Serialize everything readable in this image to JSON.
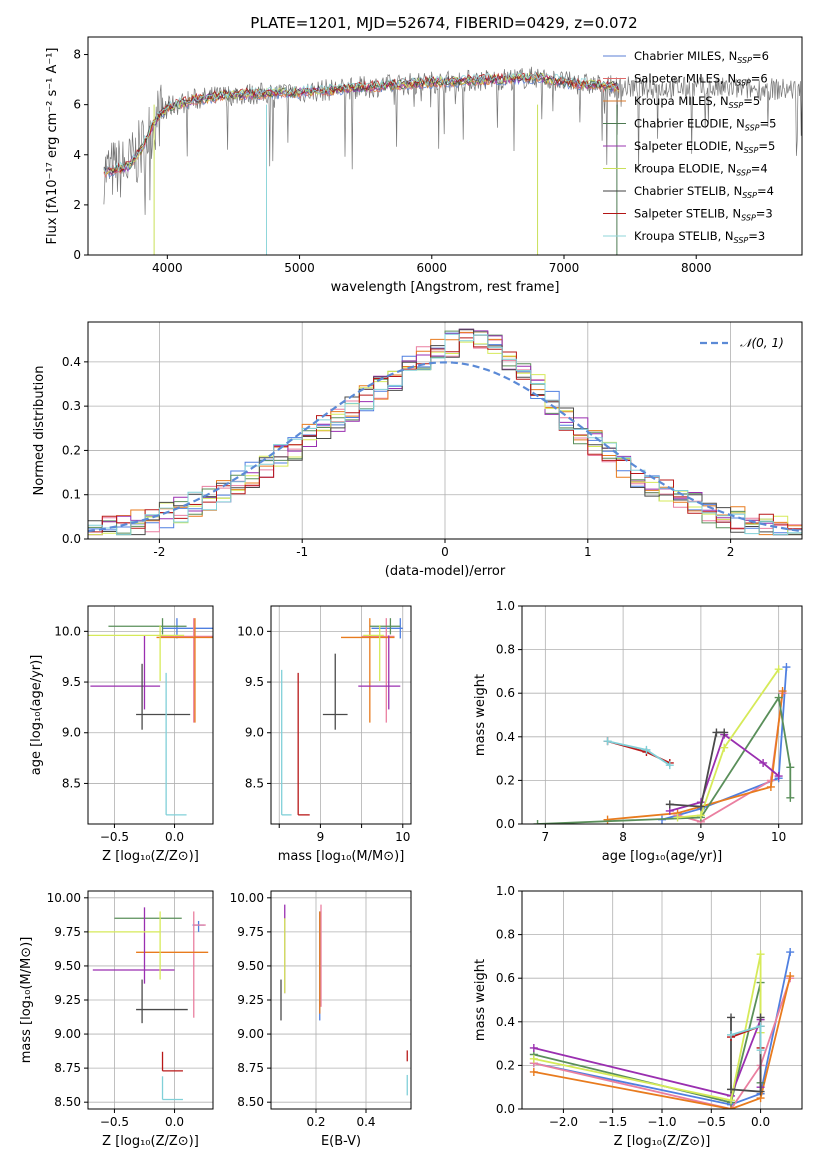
{
  "figure_title": "PLATE=1201, MJD=52674, FIBERID=0429, z=0.072",
  "colors": {
    "models": [
      "#5b7fd6",
      "#e06a6a",
      "#d97a2b",
      "#4d7a52",
      "#9b37b0",
      "#c9e05a",
      "#404040",
      "#b31515",
      "#8fd6da"
    ],
    "light": [
      "#4f7fe0",
      "#ea7fa0",
      "#e87b1e",
      "#5a8f5a",
      "#9a2fb0",
      "#d6ea59",
      "#4a4a4a",
      "#b81818",
      "#80d0d8"
    ],
    "data": "#777777",
    "normal": "#5b8ad6",
    "grid": "#b0b0b0"
  },
  "chart_data": [
    {
      "type": "line",
      "id": "spectrum",
      "title": "PLATE=1201, MJD=52674, FIBERID=0429, z=0.072",
      "xlabel": "wavelength [Angstrom, rest frame]",
      "ylabel": "Flux [fλ10⁻¹⁷ erg cm⁻² s⁻¹ A⁻¹]",
      "xlim": [
        3400,
        8800
      ],
      "ylim": [
        0,
        8.7
      ],
      "xticks": [
        4000,
        5000,
        6000,
        7000,
        8000
      ],
      "yticks": [
        0,
        2,
        4,
        6,
        8
      ],
      "grid": false,
      "legend_position": "right",
      "series": [
        {
          "name": "Chabrier MILES, N_SSP=6"
        },
        {
          "name": "Salpeter MILES, N_SSP=6"
        },
        {
          "name": "Kroupa MILES, N_SSP=5"
        },
        {
          "name": "Chabrier ELODIE, N_SSP=5"
        },
        {
          "name": "Salpeter ELODIE, N_SSP=5"
        },
        {
          "name": "Kroupa ELODIE, N_SSP=4"
        },
        {
          "name": "Chabrier STELIB, N_SSP=4"
        },
        {
          "name": "Salpeter STELIB, N_SSP=3"
        },
        {
          "name": "Kroupa STELIB, N_SSP=3"
        }
      ],
      "continuum": {
        "x": [
          3500,
          3700,
          3800,
          3900,
          4000,
          4200,
          4500,
          5000,
          5500,
          6000,
          6500,
          6800,
          7000,
          7400
        ],
        "y": [
          3.3,
          3.5,
          4.2,
          5.3,
          5.9,
          6.2,
          6.4,
          6.5,
          6.7,
          6.9,
          7.0,
          7.1,
          6.9,
          6.7
        ]
      }
    },
    {
      "type": "histogram",
      "id": "residuals",
      "xlabel": "(data-model)/error",
      "ylabel": "Normed distribution",
      "xlim": [
        -2.5,
        2.5
      ],
      "ylim": [
        0,
        0.49
      ],
      "xticks": [
        -2,
        -1,
        0,
        1,
        2
      ],
      "yticks": [
        0.0,
        0.1,
        0.2,
        0.3,
        0.4
      ],
      "grid": true,
      "legend_position": "top-right",
      "legend": "𝒩(0, 1)",
      "normal_curve": {
        "mean": 0,
        "sigma": 1
      }
    },
    {
      "type": "errorbar",
      "id": "age-vs-Z",
      "xlabel": "Z [log₁₀(Z/Z⊙)]",
      "ylabel": "age  [log₁₀(age/yr)]",
      "xlim": [
        -0.72,
        0.32
      ],
      "ylim": [
        8.1,
        10.25
      ],
      "xticks": [
        -0.5,
        0.0
      ],
      "yticks": [
        8.5,
        9.0,
        9.5,
        10.0
      ],
      "xticklabels": [
        "−0.5",
        "0.0"
      ],
      "yticklabels": [
        "8.5",
        "9.0",
        "9.5",
        "10.0"
      ],
      "grid": true,
      "points": [
        {
          "x": 0.02,
          "y": 10.03,
          "xerr": [
            0.12,
            0.32
          ],
          "yerr": [
            0.1,
            0.1
          ],
          "color": 0
        },
        {
          "x": 0.16,
          "y": 9.95,
          "xerr": [
            0.28,
            0.32
          ],
          "yerr": [
            0.85,
            0.18
          ],
          "color": 1
        },
        {
          "x": 0.17,
          "y": 9.94,
          "xerr": [
            0.32,
            0.3
          ],
          "yerr": [
            0.84,
            0.19
          ],
          "color": 2
        },
        {
          "x": -0.1,
          "y": 10.05,
          "xerr": [
            0.45,
            0.2
          ],
          "yerr": [
            0.08,
            0.08
          ],
          "color": 3
        },
        {
          "x": -0.25,
          "y": 9.46,
          "xerr": [
            0.45,
            0.13
          ],
          "yerr": [
            0.23,
            0.5
          ],
          "color": 4
        },
        {
          "x": -0.12,
          "y": 9.96,
          "xerr": [
            0.65,
            0.2
          ],
          "yerr": [
            0.45,
            0.1
          ],
          "color": 5
        },
        {
          "x": -0.27,
          "y": 9.18,
          "xerr": [
            0.05,
            0.4
          ],
          "yerr": [
            0.15,
            0.5
          ],
          "color": 6
        },
        {
          "x": -0.1,
          "y": 9.58,
          "xerr": [
            0.0,
            0.0
          ],
          "yerr": [
            0.0,
            0.0
          ],
          "color": 7
        },
        {
          "x": -0.07,
          "y": 8.19,
          "xerr": [
            0.0,
            0.17
          ],
          "yerr": [
            0.0,
            1.4
          ],
          "color": 8
        }
      ]
    },
    {
      "type": "errorbar",
      "id": "age-vs-mass",
      "xlabel": "mass [log₁₀(M/M⊙)]",
      "xlim": [
        8.4,
        10.1
      ],
      "ylim": [
        8.1,
        10.25
      ],
      "xticks": [
        8.5,
        9.0,
        9.5,
        10.0
      ],
      "yticks": [
        8.5,
        9.0,
        9.5,
        10.0
      ],
      "xticklabels": [
        "",
        "9",
        "",
        "10"
      ],
      "yticklabels": [
        "8.5",
        "9.0",
        "9.5",
        "10.0"
      ],
      "grid": true,
      "points": [
        {
          "x": 9.97,
          "y": 10.03,
          "xerr": [
            0.35,
            0.03
          ],
          "yerr": [
            0.1,
            0.1
          ],
          "color": 0
        },
        {
          "x": 9.8,
          "y": 9.95,
          "xerr": [
            0.3,
            0.1
          ],
          "yerr": [
            0.85,
            0.18
          ],
          "color": 1
        },
        {
          "x": 9.6,
          "y": 9.94,
          "xerr": [
            0.35,
            0.3
          ],
          "yerr": [
            0.84,
            0.19
          ],
          "color": 2
        },
        {
          "x": 9.85,
          "y": 10.05,
          "xerr": [
            0.25,
            0.12
          ],
          "yerr": [
            0.08,
            0.08
          ],
          "color": 3
        },
        {
          "x": 9.83,
          "y": 9.46,
          "xerr": [
            0.37,
            0.14
          ],
          "yerr": [
            0.23,
            0.5
          ],
          "color": 4
        },
        {
          "x": 9.72,
          "y": 9.96,
          "xerr": [
            0.2,
            0.05
          ],
          "yerr": [
            0.45,
            0.1
          ],
          "color": 5
        },
        {
          "x": 9.18,
          "y": 9.18,
          "xerr": [
            0.15,
            0.15
          ],
          "yerr": [
            0.15,
            0.6
          ],
          "color": 6
        },
        {
          "x": 8.73,
          "y": 8.19,
          "xerr": [
            0.0,
            0.14
          ],
          "yerr": [
            0.0,
            1.4
          ],
          "color": 7
        },
        {
          "x": 8.53,
          "y": 8.19,
          "xerr": [
            0.0,
            0.12
          ],
          "yerr": [
            0.0,
            1.43
          ],
          "color": 8
        }
      ]
    },
    {
      "type": "line",
      "id": "mass-weight-vs-age",
      "xlabel": "age  [log₁₀(age/yr)]",
      "ylabel": "mass weight",
      "xlim": [
        6.7,
        10.3
      ],
      "ylim": [
        0,
        1.0
      ],
      "xticks": [
        7,
        8,
        9,
        10
      ],
      "yticks": [
        0.0,
        0.2,
        0.4,
        0.6,
        0.8,
        1.0
      ],
      "grid": true,
      "series": [
        {
          "color": 0,
          "x": [
            8.5,
            9.0,
            10.0,
            10.1
          ],
          "y": [
            0.02,
            0.07,
            0.21,
            0.72
          ]
        },
        {
          "color": 1,
          "x": [
            8.7,
            9.0,
            9.9,
            10.05
          ],
          "y": [
            0.04,
            0.01,
            0.2,
            0.6
          ]
        },
        {
          "color": 2,
          "x": [
            7.8,
            8.7,
            9.9,
            10.05
          ],
          "y": [
            0.02,
            0.05,
            0.17,
            0.61
          ]
        },
        {
          "color": 3,
          "x": [
            6.9,
            9.0,
            10.0,
            10.15,
            10.15
          ],
          "y": [
            0.0,
            0.03,
            0.58,
            0.26,
            0.12
          ]
        },
        {
          "color": 4,
          "x": [
            8.6,
            9.0,
            9.3,
            9.8,
            10.0
          ],
          "y": [
            0.06,
            0.1,
            0.41,
            0.28,
            0.22
          ]
        },
        {
          "color": 5,
          "x": [
            8.7,
            9.0,
            9.3,
            10.0
          ],
          "y": [
            0.03,
            0.04,
            0.35,
            0.71
          ]
        },
        {
          "color": 6,
          "x": [
            8.6,
            9.0,
            9.2,
            9.3
          ],
          "y": [
            0.09,
            0.08,
            0.42,
            0.42
          ]
        },
        {
          "color": 7,
          "x": [
            7.8,
            8.3,
            8.6
          ],
          "y": [
            0.38,
            0.33,
            0.28
          ]
        },
        {
          "color": 8,
          "x": [
            7.8,
            8.3,
            8.6
          ],
          "y": [
            0.38,
            0.34,
            0.27
          ]
        }
      ]
    },
    {
      "type": "errorbar",
      "id": "mass-vs-Z",
      "xlabel": "Z [log₁₀(Z/Z⊙)]",
      "ylabel": "mass [log₁₀(M/M⊙)]",
      "xlim": [
        -0.72,
        0.32
      ],
      "ylim": [
        8.45,
        10.05
      ],
      "xticks": [
        -0.5,
        0.0
      ],
      "yticks": [
        8.5,
        8.75,
        9.0,
        9.25,
        9.5,
        9.75,
        10.0
      ],
      "xticklabels": [
        "−0.5",
        "0.0"
      ],
      "yticklabels": [
        "8.50",
        "8.75",
        "9.00",
        "9.25",
        "9.50",
        "9.75",
        "10.00"
      ],
      "grid": true,
      "points": [
        {
          "x": 0.2,
          "y": 9.8,
          "xerr": [
            0.05,
            0.05
          ],
          "yerr": [
            0.05,
            0.03
          ],
          "color": 0
        },
        {
          "x": 0.16,
          "y": 9.8,
          "xerr": [
            0.0,
            0.1
          ],
          "yerr": [
            0.68,
            0.1
          ],
          "color": 1
        },
        {
          "x": -0.1,
          "y": 9.6,
          "xerr": [
            0.22,
            0.38
          ],
          "yerr": [
            0.0,
            0.0
          ],
          "color": 2
        },
        {
          "x": -0.22,
          "y": 9.85,
          "xerr": [
            0.28,
            0.28
          ],
          "yerr": [
            0.0,
            0.0
          ],
          "color": 3
        },
        {
          "x": -0.25,
          "y": 9.47,
          "xerr": [
            0.43,
            0.25
          ],
          "yerr": [
            0.1,
            0.46
          ],
          "color": 4
        },
        {
          "x": -0.12,
          "y": 9.75,
          "xerr": [
            0.6,
            0.0
          ],
          "yerr": [
            0.35,
            0.15
          ],
          "color": 5
        },
        {
          "x": -0.27,
          "y": 9.18,
          "xerr": [
            0.05,
            0.38
          ],
          "yerr": [
            0.1,
            0.22
          ],
          "color": 6
        },
        {
          "x": -0.1,
          "y": 8.73,
          "xerr": [
            0.0,
            0.17
          ],
          "yerr": [
            0.0,
            0.14
          ],
          "color": 7
        },
        {
          "x": -0.1,
          "y": 8.52,
          "xerr": [
            0.0,
            0.17
          ],
          "yerr": [
            0.0,
            0.17
          ],
          "color": 8
        }
      ]
    },
    {
      "type": "errorbar",
      "id": "mass-vs-ebv",
      "xlabel": "E(B-V)",
      "xlim": [
        0.02,
        0.58
      ],
      "ylim": [
        8.45,
        10.05
      ],
      "xticks": [
        0.2,
        0.4
      ],
      "yticks": [
        8.5,
        8.75,
        9.0,
        9.25,
        9.5,
        9.75,
        10.0
      ],
      "xticklabels": [
        "0.2",
        "0.4"
      ],
      "yticklabels": [
        "8.50",
        "8.75",
        "9.00",
        "9.25",
        "9.50",
        "9.75",
        "10.00"
      ],
      "grid": true,
      "points": [
        {
          "x": 0.215,
          "y": 9.5,
          "xerr": [
            0.0,
            0.0
          ],
          "yerr": [
            0.4,
            0.4
          ],
          "color": 0
        },
        {
          "x": 0.22,
          "y": 9.55,
          "xerr": [
            0.0,
            0.0
          ],
          "yerr": [
            0.35,
            0.4
          ],
          "color": 1
        },
        {
          "x": 0.215,
          "y": 9.45,
          "xerr": [
            0.0,
            0.0
          ],
          "yerr": [
            0.3,
            0.45
          ],
          "color": 2
        },
        {
          "x": 0.075,
          "y": 9.6,
          "xerr": [
            0.0,
            0.0
          ],
          "yerr": [
            0.3,
            0.35
          ],
          "color": 4
        },
        {
          "x": 0.075,
          "y": 9.6,
          "xerr": [
            0.0,
            0.0
          ],
          "yerr": [
            0.3,
            0.25
          ],
          "color": 5
        },
        {
          "x": 0.06,
          "y": 9.2,
          "xerr": [
            0.0,
            0.0
          ],
          "yerr": [
            0.1,
            0.2
          ],
          "color": 6
        },
        {
          "x": 0.565,
          "y": 8.8,
          "xerr": [
            0.0,
            0.0
          ],
          "yerr": [
            0.0,
            0.08
          ],
          "color": 7
        },
        {
          "x": 0.565,
          "y": 8.55,
          "xerr": [
            0.0,
            0.0
          ],
          "yerr": [
            0.0,
            0.15
          ],
          "color": 8
        }
      ]
    },
    {
      "type": "line",
      "id": "mass-weight-vs-Z",
      "xlabel": "Z [log₁₀(Z/Z⊙)]",
      "ylabel": "mass weight",
      "xlim": [
        -2.42,
        0.42
      ],
      "ylim": [
        0,
        1.0
      ],
      "xticks": [
        -2.0,
        -1.5,
        -1.0,
        -0.5,
        0.0
      ],
      "xticklabels": [
        "−2.0",
        "−1.5",
        "−1.0",
        "−0.5",
        "0.0"
      ],
      "yticks": [
        0.0,
        0.2,
        0.4,
        0.6,
        0.8,
        1.0
      ],
      "grid": true,
      "series": [
        {
          "color": 0,
          "x": [
            -2.3,
            -0.3,
            0.0,
            0.3
          ],
          "y": [
            0.21,
            0.02,
            0.07,
            0.72
          ]
        },
        {
          "color": 1,
          "x": [
            -2.3,
            -0.3,
            0.0,
            0.3
          ],
          "y": [
            0.21,
            0.0,
            0.2,
            0.6
          ]
        },
        {
          "color": 2,
          "x": [
            -2.3,
            -0.3,
            0.0,
            0.3
          ],
          "y": [
            0.17,
            0.0,
            0.05,
            0.61
          ]
        },
        {
          "color": 3,
          "x": [
            -2.3,
            -0.3,
            0.0,
            0.0
          ],
          "y": [
            0.25,
            0.03,
            0.58,
            0.12
          ]
        },
        {
          "color": 4,
          "x": [
            -2.3,
            -0.3,
            0.0,
            0.0
          ],
          "y": [
            0.28,
            0.06,
            0.41,
            0.1
          ]
        },
        {
          "color": 5,
          "x": [
            -2.3,
            -0.3,
            0.0,
            0.0
          ],
          "y": [
            0.23,
            0.04,
            0.71,
            0.35
          ]
        },
        {
          "color": 6,
          "x": [
            -0.3,
            -0.3,
            0.0,
            0.0
          ],
          "y": [
            0.42,
            0.09,
            0.08,
            0.42
          ]
        },
        {
          "color": 7,
          "x": [
            -0.3,
            0.0,
            0.0
          ],
          "y": [
            0.33,
            0.38,
            0.28
          ]
        },
        {
          "color": 8,
          "x": [
            -0.3,
            0.0,
            0.0
          ],
          "y": [
            0.34,
            0.38,
            0.27
          ]
        }
      ]
    }
  ]
}
